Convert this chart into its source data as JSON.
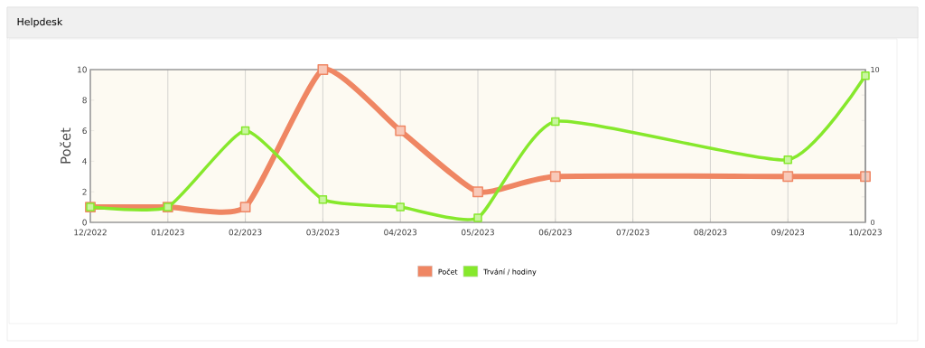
{
  "chart_data": {
    "type": "line",
    "title": "Helpdesk",
    "ylabel": "Počet",
    "categories": [
      "12/2022",
      "01/2023",
      "02/2023",
      "03/2023",
      "04/2023",
      "05/2023",
      "06/2023",
      "07/2023",
      "08/2023",
      "09/2023",
      "10/2023"
    ],
    "series": [
      {
        "name": "Počet",
        "color": "#ef8663",
        "values": [
          1,
          1,
          1,
          10,
          6,
          2,
          3,
          null,
          null,
          3,
          3
        ]
      },
      {
        "name": "Trvání / hodiny",
        "color": "#86e82c",
        "axis": "y2",
        "values": [
          1,
          1,
          6,
          1.5,
          1,
          0.3,
          6.6,
          null,
          null,
          4.1,
          9.6
        ]
      }
    ],
    "ylim": [
      0,
      10
    ],
    "yticks": [
      0,
      2,
      4,
      6,
      8,
      10
    ],
    "y2lim": [
      0,
      10
    ],
    "y2ticks": [
      {
        "value": 0,
        "label": "0"
      },
      {
        "value": 1.667,
        "label": null
      },
      {
        "value": 3.333,
        "label": null
      },
      {
        "value": 5,
        "label": null
      },
      {
        "value": 6.667,
        "label": null
      },
      {
        "value": 8.333,
        "label": null
      },
      {
        "value": 10,
        "label": "10"
      }
    ],
    "grid": "x",
    "legend": "bottom",
    "marker": "square",
    "line_style": "solid"
  }
}
